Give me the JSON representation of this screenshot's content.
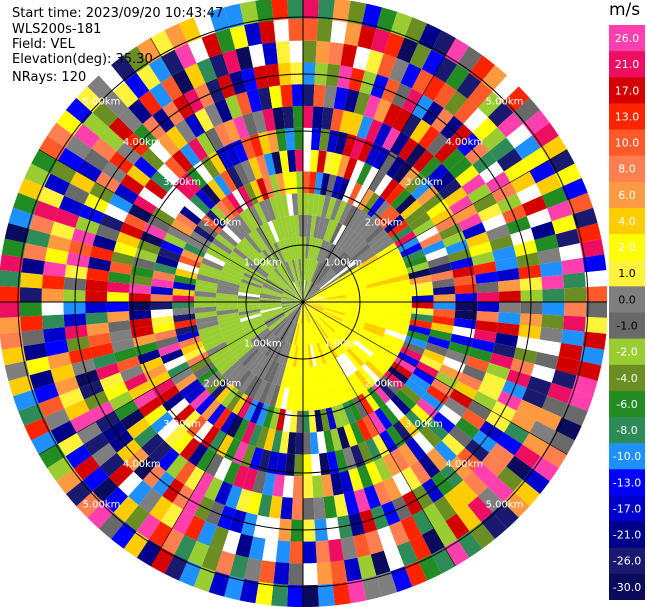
{
  "header": {
    "start_time": "Start time: 2023/09/20 10:43:47",
    "instrument": "WLS200s-181",
    "field": "Field: VEL",
    "elevation": "Elevation(deg): 35.30",
    "nrays": "NRays: 120"
  },
  "chart_data": {
    "type": "heatmap",
    "subtype": "ppi-polar-scan",
    "nrays": 120,
    "field": "VEL",
    "unit": "m/s",
    "range_rings": [
      "1.00km",
      "2.00km",
      "3.00km",
      "4.00km",
      "5.00km"
    ],
    "range_rings_km": [
      1,
      2,
      3,
      4,
      5
    ],
    "gates": 14,
    "grid": true,
    "colorbar": {
      "unit": "m/s",
      "ticks": [
        "26.0",
        "21.0",
        "17.0",
        "13.0",
        "10.0",
        "8.0",
        "6.0",
        "4.0",
        "2.0",
        "1.0",
        "0.0",
        "-1.0",
        "-2.0",
        "-4.0",
        "-6.0",
        "-8.0",
        "-10.0",
        "-13.0",
        "-17.0",
        "-21.0",
        "-26.0",
        "-30.0"
      ],
      "colors": [
        "#ff3fae",
        "#ee0e61",
        "#d40000",
        "#ff2400",
        "#ff5a2a",
        "#ff7f50",
        "#ff9a40",
        "#ffcc00",
        "#ffff00",
        "#fff23a",
        "#7f7f7f",
        "#696969",
        "#9acd32",
        "#6b8e23",
        "#228b22",
        "#2e8b57",
        "#1e90ff",
        "#0000ff",
        "#0000cd",
        "#00008b",
        "#191970",
        "#0b0b5e"
      ]
    },
    "wind_pattern": "gray/green near zero velocities in inner rings, yellow positive velocities to the east and south, noisy mixed colors beyond 2.00km"
  }
}
